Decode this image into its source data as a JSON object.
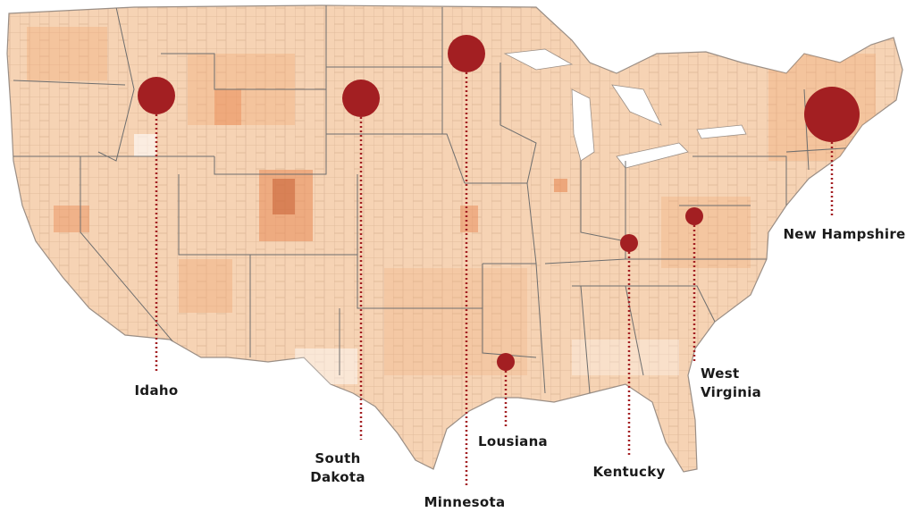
{
  "map": {
    "region": "United States (contiguous)",
    "base_layer": "county choropleth",
    "colors": {
      "land_base": "#f6d3b4",
      "county_light": "#fbe6d4",
      "county_mid": "#f4b58a",
      "county_dark": "#e88a55",
      "county_darkest": "#c9653a",
      "county_border": "#d9b393",
      "state_border": "#6e6e6e",
      "marker": "#a31f22",
      "leader_line": "#a31f22",
      "label_text": "#1a1a1a"
    },
    "markers": [
      {
        "state": "Idaho",
        "label_lines": [
          "Idaho"
        ],
        "relative_size": 3
      },
      {
        "state": "South Dakota",
        "label_lines": [
          "South",
          "Dakota"
        ],
        "relative_size": 3
      },
      {
        "state": "Minnesota",
        "label_lines": [
          "Minnesota"
        ],
        "relative_size": 3
      },
      {
        "state": "Lousiana",
        "label_lines": [
          "Lousiana"
        ],
        "relative_size": 1
      },
      {
        "state": "Kentucky",
        "label_lines": [
          "Kentucky"
        ],
        "relative_size": 1
      },
      {
        "state": "West Virginia",
        "label_lines": [
          "West",
          "Virginia"
        ],
        "relative_size": 1
      },
      {
        "state": "New Hampshire",
        "label_lines": [
          "New Hampshire"
        ],
        "relative_size": 4
      }
    ]
  }
}
